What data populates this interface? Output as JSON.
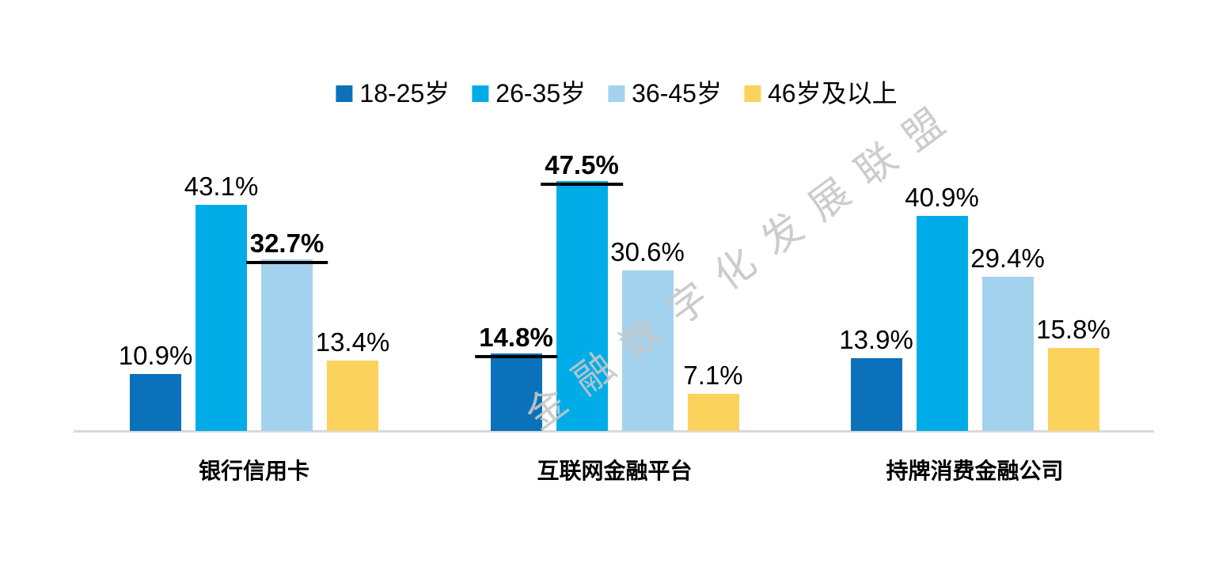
{
  "watermark": {
    "text": "金融数字化发展联盟",
    "color": "#C7C7C7"
  },
  "chart_data": {
    "type": "bar",
    "title": "",
    "categories": [
      "银行信用卡",
      "互联网金融平台",
      "持牌消费金融公司"
    ],
    "series": [
      {
        "name": "18-25岁",
        "color": "#0A71BA",
        "values": [
          10.9,
          14.8,
          13.9
        ],
        "emphasis": [
          false,
          true,
          false
        ]
      },
      {
        "name": "26-35岁",
        "color": "#00ACE8",
        "values": [
          43.1,
          47.5,
          40.9
        ],
        "emphasis": [
          false,
          true,
          false
        ]
      },
      {
        "name": "36-45岁",
        "color": "#A3D3EF",
        "values": [
          32.7,
          30.6,
          29.4
        ],
        "emphasis": [
          true,
          false,
          false
        ]
      },
      {
        "name": "46岁及以上",
        "color": "#FBD35C",
        "values": [
          13.4,
          7.1,
          15.8
        ],
        "emphasis": [
          false,
          false,
          false
        ]
      }
    ],
    "value_suffix": "%",
    "ylim": [
      0,
      50
    ],
    "grid": false,
    "y_axis_visible": false,
    "legend_position": "top",
    "baseline_color": "#D9D9D9",
    "label_color": "#000000"
  }
}
